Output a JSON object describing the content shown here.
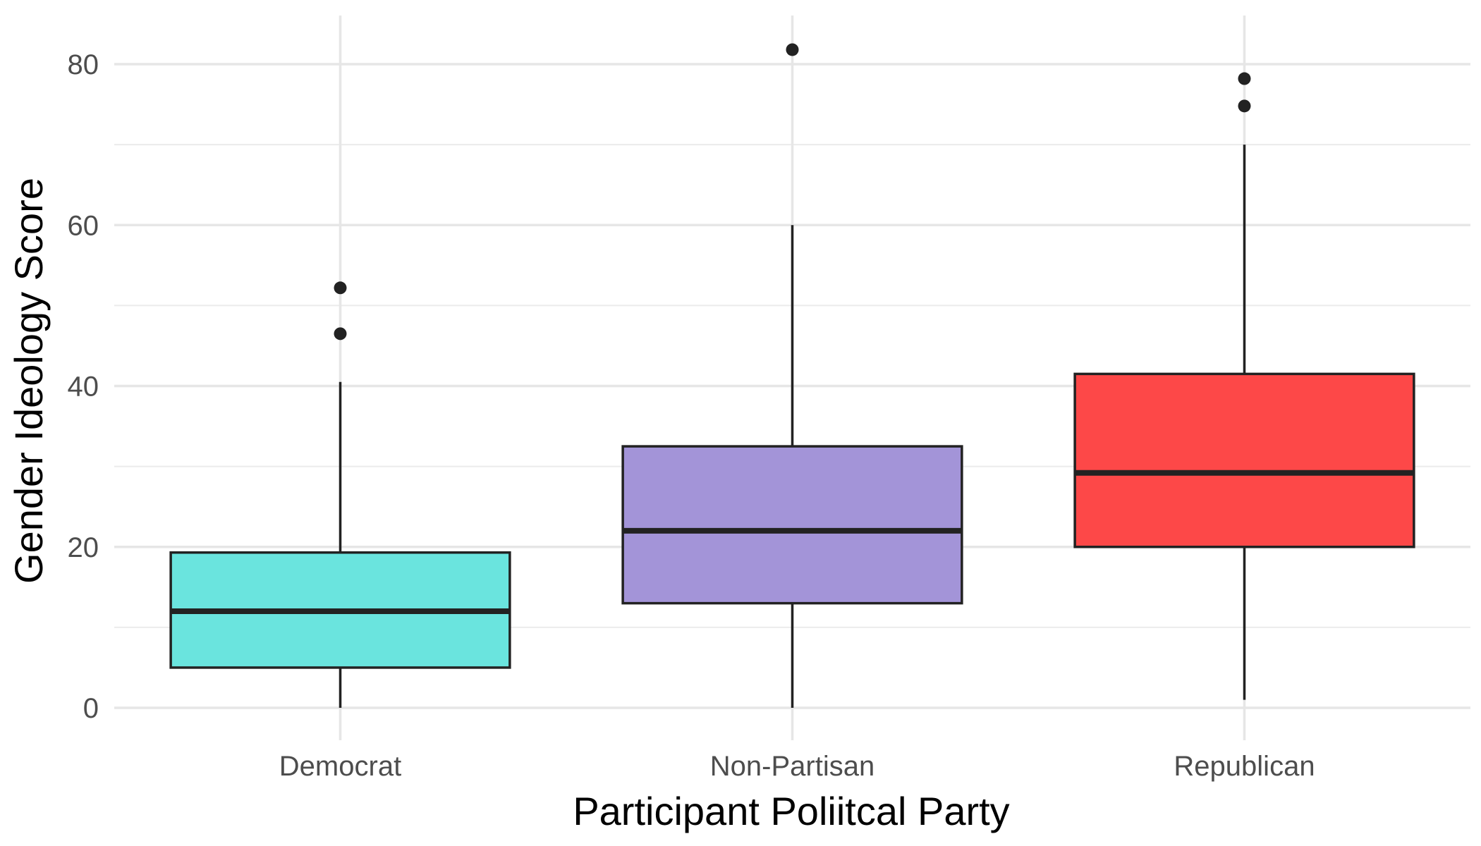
{
  "chart_data": {
    "type": "boxplot",
    "title": "",
    "xlabel": "Participant Poliitcal Party",
    "ylabel": "Gender Ideology Score",
    "ylim": [
      -4.5,
      86
    ],
    "yticks": [
      0,
      20,
      40,
      60,
      80
    ],
    "grid": true,
    "legend": "none",
    "categories": [
      "Democrat",
      "Non-Partisan",
      "Republican"
    ],
    "boxes": [
      {
        "category": "Democrat",
        "whisker_low": 0,
        "q1": 5,
        "median": 12,
        "q3": 19.3,
        "whisker_high": 40.5,
        "outliers": [
          46.5,
          52.2
        ],
        "color": "#6ae4de"
      },
      {
        "category": "Non-Partisan",
        "whisker_low": 0,
        "q1": 13,
        "median": 22,
        "q3": 32.5,
        "whisker_high": 60,
        "outliers": [
          81.8
        ],
        "color": "#a394d8"
      },
      {
        "category": "Republican",
        "whisker_low": 1,
        "q1": 20,
        "median": 29.2,
        "q3": 41.5,
        "whisker_high": 70,
        "outliers": [
          74.8,
          78.2
        ],
        "color": "#fd4848"
      }
    ]
  }
}
